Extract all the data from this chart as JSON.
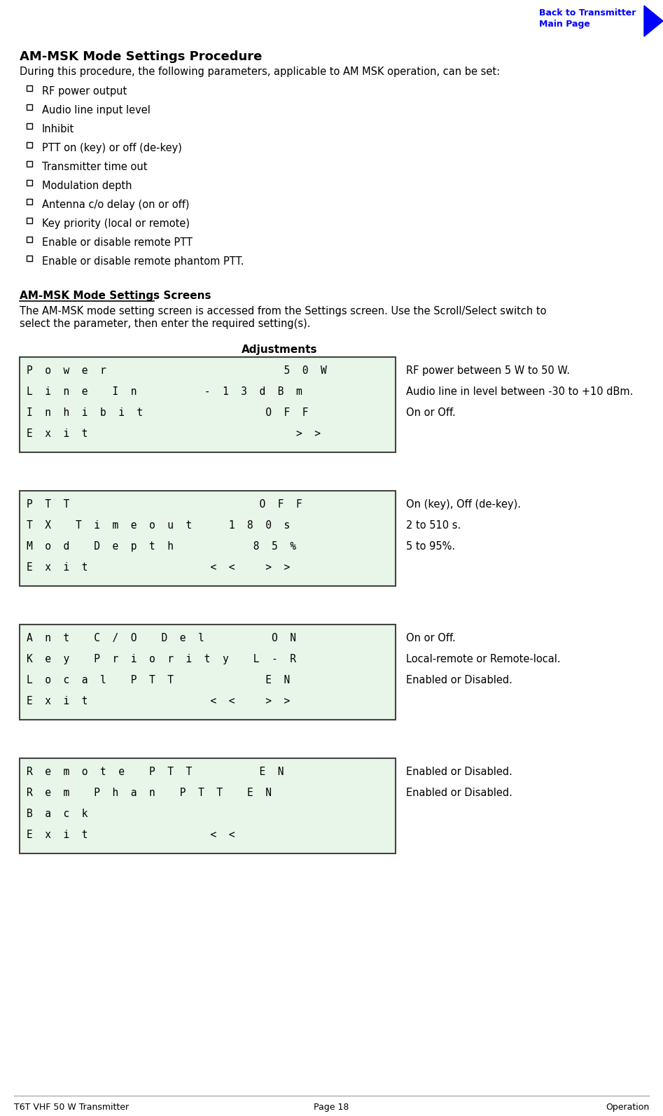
{
  "title": "AM-MSK Mode Settings Procedure",
  "subtitle": "During this procedure, the following parameters, applicable to AM MSK operation, can be set:",
  "bullet_items": [
    "RF power output",
    "Audio line input level",
    "Inhibit",
    "PTT on (key) or off (de-key)",
    "Transmitter time out",
    "Modulation depth",
    "Antenna c/o delay (on or off)",
    "Key priority (local or remote)",
    "Enable or disable remote PTT",
    "Enable or disable remote phantom PTT."
  ],
  "section2_title": "AM-MSK Mode Settings Screens",
  "section2_body_line1": "The AM-MSK mode setting screen is accessed from the Settings screen. Use the Scroll/Select switch to",
  "section2_body_line2": "select the parameter, then enter the required setting(s).",
  "adjustments_label": "Adjustments",
  "screens": [
    {
      "lines": [
        "P  o  w  e  r                             5  0  W",
        "L  i  n  e    I  n           -  1  3  d  B  m",
        "I  n  h  i  b  i  t                    O  F  F",
        "E  x  i  t                                  >  >"
      ],
      "adjustments": [
        "RF power between 5 W to 50 W.",
        "Audio line in level between -30 to +10 dBm.",
        "On or Off.",
        ""
      ]
    },
    {
      "lines": [
        "P  T  T                               O  F  F",
        "T  X    T  i  m  e  o  u  t      1  8  0  s",
        "M  o  d    D  e  p  t  h             8  5  %",
        "E  x  i  t                    <  <     >  >"
      ],
      "adjustments": [
        "On (key), Off (de-key).",
        "2 to 510 s.",
        "5 to 95%.",
        ""
      ]
    },
    {
      "lines": [
        "A  n  t    C  /  O    D  e  l           O  N",
        "K  e  y    P  r  i  o  r  i  t  y    L  -  R",
        "L  o  c  a  l    P  T  T               E  N",
        "E  x  i  t                    <  <     >  >"
      ],
      "adjustments": [
        "On or Off.",
        "Local-remote or Remote-local.",
        "Enabled or Disabled.",
        ""
      ]
    },
    {
      "lines": [
        "R  e  m  o  t  e    P  T  T           E  N",
        "R  e  m    P  h  a  n    P  T  T    E  N",
        "B  a  c  k",
        "E  x  i  t                    <  <"
      ],
      "adjustments": [
        "Enabled or Disabled.",
        "Enabled or Disabled.",
        "",
        ""
      ]
    }
  ],
  "footer_left": "T6T VHF 50 W Transmitter",
  "footer_center": "Page 18",
  "footer_right": "Operation",
  "back_link_line1": "Back to Transmitter",
  "back_link_line2": "Main Page",
  "bg_color": "#ffffff",
  "screen_bg": "#e8f5e9",
  "screen_border": "#444444",
  "text_color": "#000000",
  "blue_color": "#0000ff"
}
